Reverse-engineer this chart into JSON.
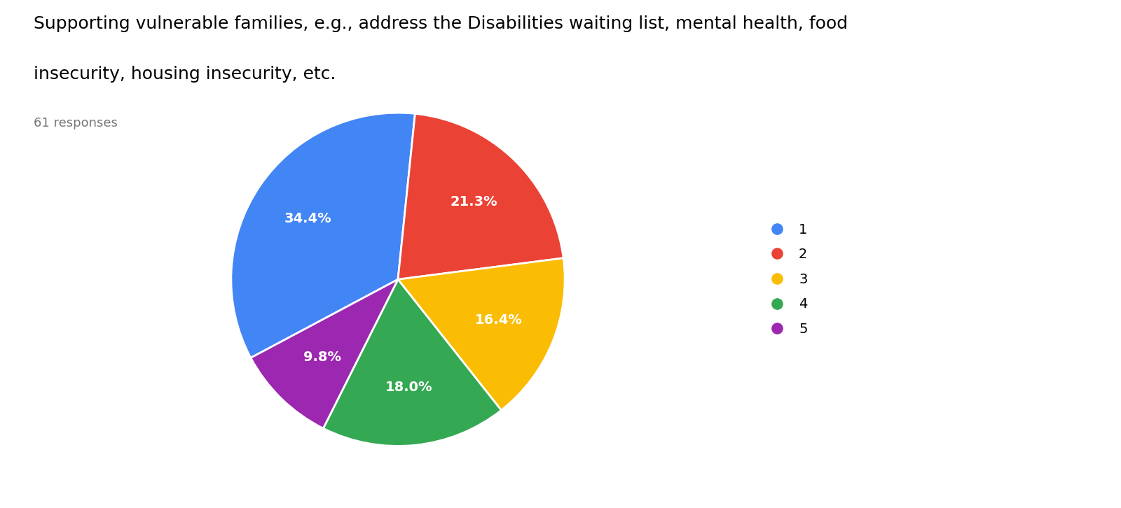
{
  "title_line1": "Supporting vulnerable families, e.g., address the Disabilities waiting list, mental health, food",
  "title_line2": "insecurity, housing insecurity, etc.",
  "responses_text": "61 responses",
  "labels": [
    "1",
    "2",
    "3",
    "4",
    "5"
  ],
  "percentages": [
    34.4,
    21.3,
    16.4,
    18.0,
    9.8
  ],
  "colors": [
    "#4285F4",
    "#EA4335",
    "#FBBC04",
    "#34A853",
    "#9C27B0"
  ],
  "background_color": "#ffffff",
  "title_fontsize": 18,
  "responses_fontsize": 13,
  "pct_fontsize": 14,
  "legend_fontsize": 14
}
